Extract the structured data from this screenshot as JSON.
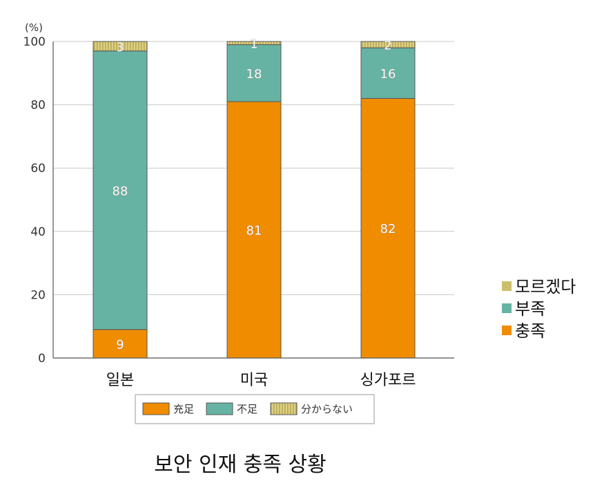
{
  "chart_data": {
    "type": "bar",
    "stacked": true,
    "unit_label": "(%)",
    "categories": [
      "일본",
      "미국",
      "싱가포르"
    ],
    "series": [
      {
        "name": "충족",
        "color": "#f08c00",
        "values": [
          9,
          81,
          82
        ]
      },
      {
        "name": "부족",
        "color": "#67b3a3",
        "values": [
          88,
          18,
          16
        ]
      },
      {
        "name": "모르겠다",
        "color": "#cdbf6a",
        "values": [
          3,
          1,
          2
        ]
      }
    ],
    "ylim": [
      0,
      100
    ],
    "yticks": [
      0,
      20,
      40,
      60,
      80,
      100
    ],
    "grid": true,
    "legend_position": "right",
    "secondary_legend": {
      "position": "bottom",
      "items": [
        "充足",
        "不足",
        "分からない"
      ]
    }
  },
  "caption": "보안 인재 충족 상황"
}
